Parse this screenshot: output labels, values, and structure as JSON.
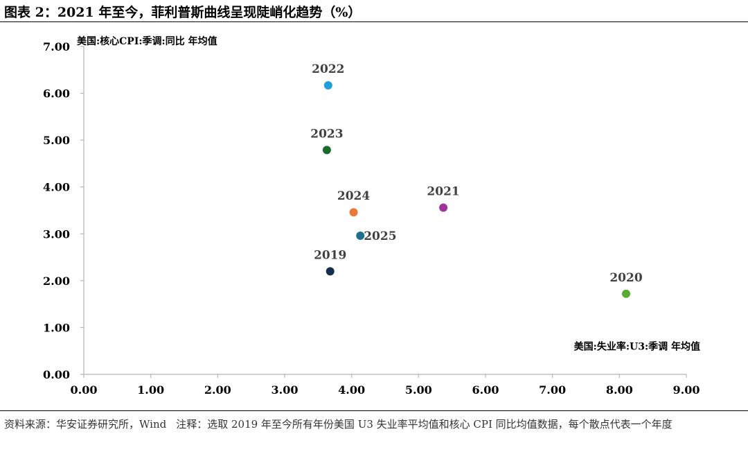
{
  "title": "图表 2：2021 年至今，菲利普斯曲线呈现陡峭化趋势（%）",
  "footer": {
    "source": "资料来源：华安证券研究所，Wind",
    "note": "注释：选取 2019 年至今所有年份美国 U3 失业率平均值和核心 CPI 同比均值数据，每个散点代表一个年度"
  },
  "chart_data": {
    "type": "scatter",
    "title": "",
    "xlabel": "美国:失业率:U3:季调 年均值",
    "ylabel": "美国:核心CPI:季调:同比 年均值",
    "xlim": [
      0,
      9
    ],
    "ylim": [
      0,
      7
    ],
    "x_ticks": [
      "0.00",
      "1.00",
      "2.00",
      "3.00",
      "4.00",
      "5.00",
      "6.00",
      "7.00",
      "8.00",
      "9.00"
    ],
    "y_ticks": [
      "0.00",
      "1.00",
      "2.00",
      "3.00",
      "4.00",
      "5.00",
      "6.00",
      "7.00"
    ],
    "grid": false,
    "points": [
      {
        "label": "2019",
        "x": 3.68,
        "y": 2.2,
        "color": "#14304a"
      },
      {
        "label": "2020",
        "x": 8.1,
        "y": 1.72,
        "color": "#5aab33"
      },
      {
        "label": "2021",
        "x": 5.37,
        "y": 3.56,
        "color": "#9e3497"
      },
      {
        "label": "2022",
        "x": 3.65,
        "y": 6.17,
        "color": "#1fa0d8"
      },
      {
        "label": "2023",
        "x": 3.63,
        "y": 4.79,
        "color": "#1d6b2c"
      },
      {
        "label": "2024",
        "x": 4.03,
        "y": 3.46,
        "color": "#e8793a"
      },
      {
        "label": "2025",
        "x": 4.13,
        "y": 2.96,
        "color": "#1f6e8c"
      }
    ]
  }
}
